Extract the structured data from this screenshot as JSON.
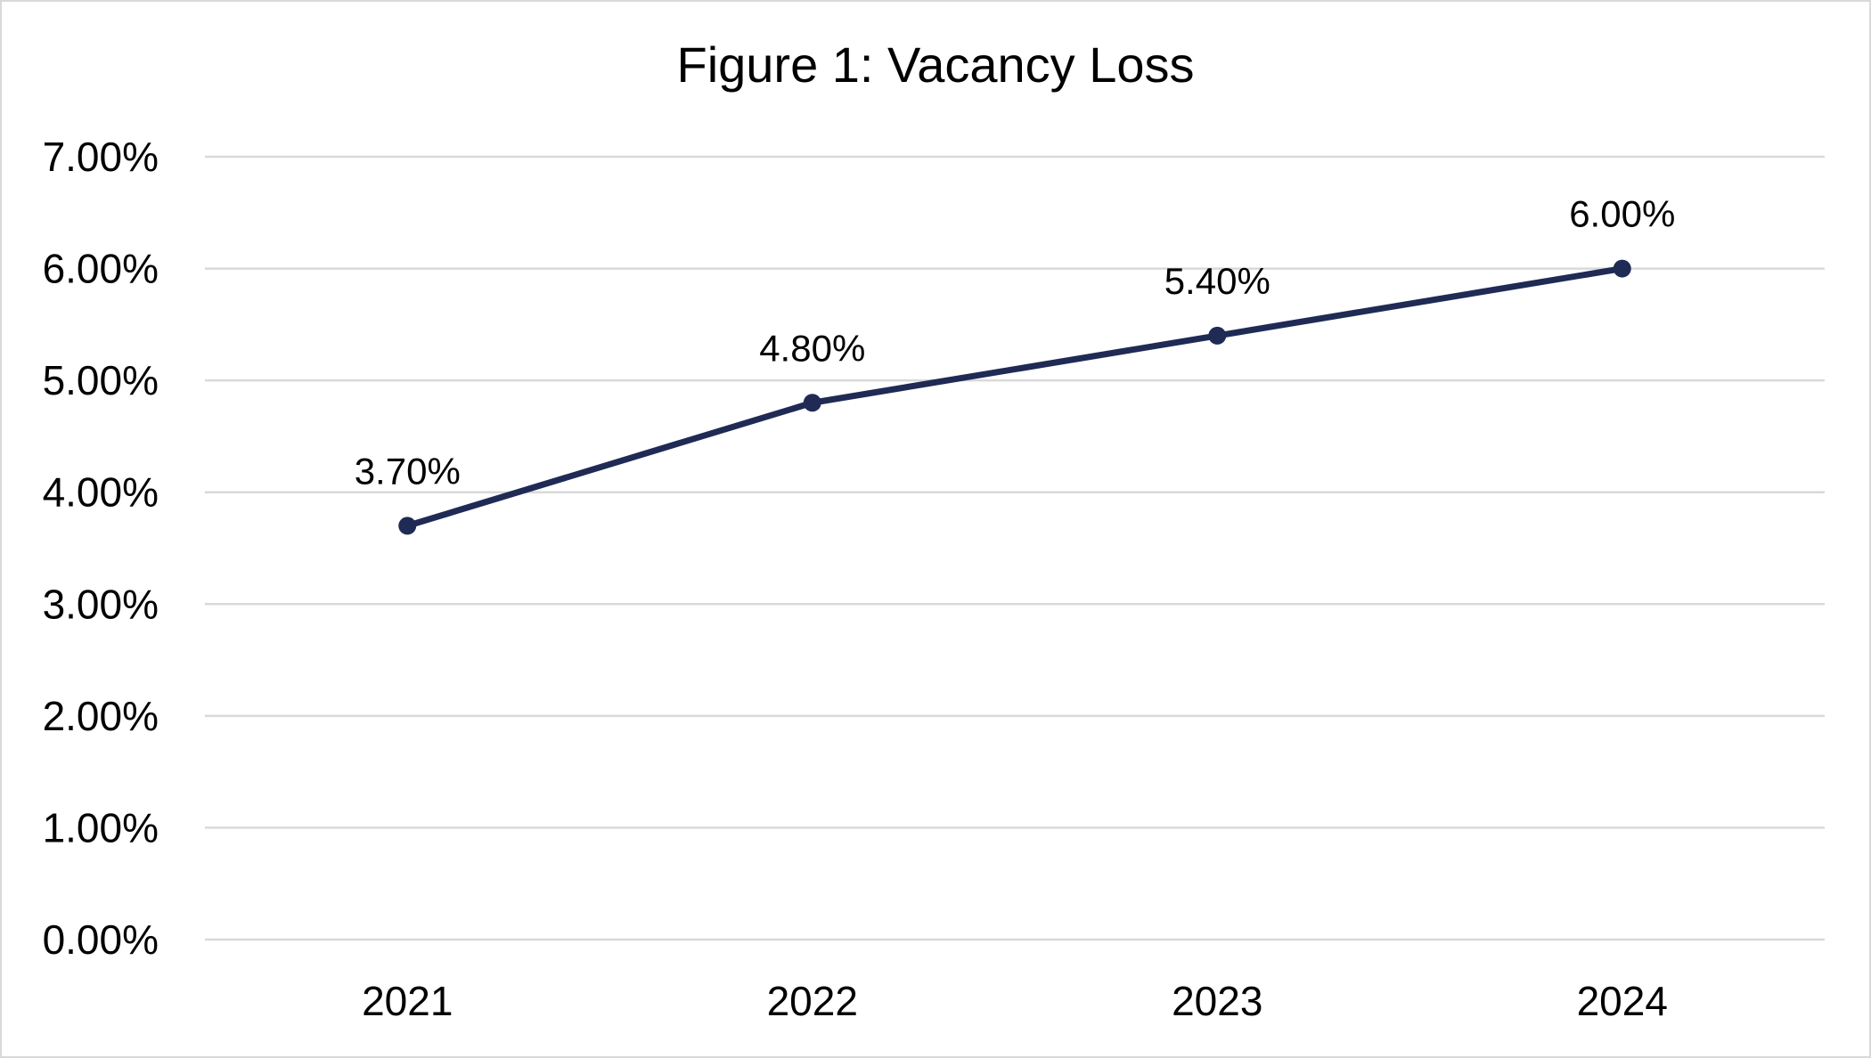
{
  "chart_data": {
    "type": "line",
    "title": "Figure 1: Vacancy Loss",
    "categories": [
      "2021",
      "2022",
      "2023",
      "2024"
    ],
    "series": [
      {
        "values": [
          0.037,
          0.048,
          0.054,
          0.06
        ]
      }
    ],
    "data_labels": [
      "3.70%",
      "4.80%",
      "5.40%",
      "6.00%"
    ],
    "y_ticks": [
      "0.00%",
      "1.00%",
      "2.00%",
      "3.00%",
      "4.00%",
      "5.00%",
      "6.00%",
      "7.00%"
    ],
    "ylim": [
      0,
      0.07
    ],
    "grid": true,
    "legend": "none",
    "colors": {
      "line": "#1f2a55",
      "grid": "#d9d9d9",
      "frame": "#d9d9d9"
    }
  }
}
